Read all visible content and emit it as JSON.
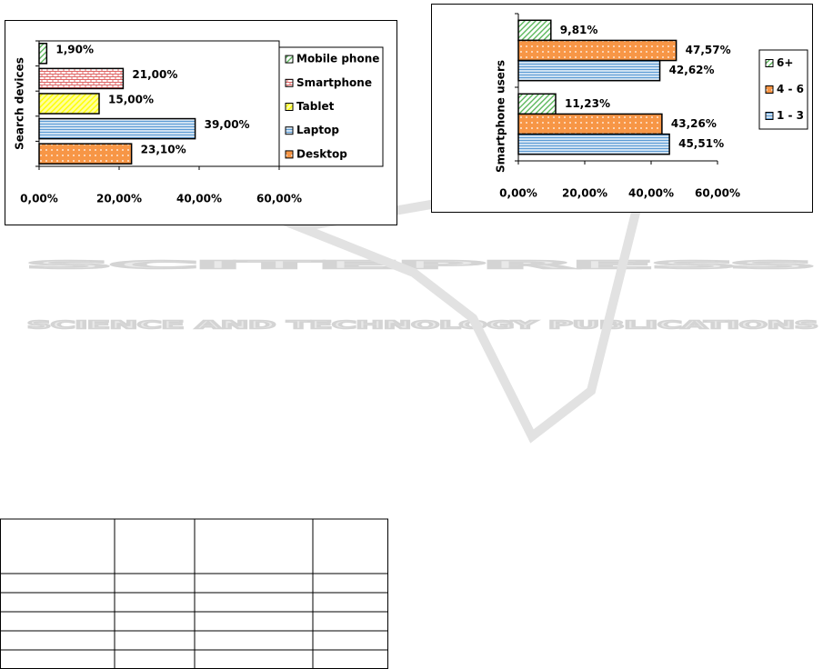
{
  "chart_data": [
    {
      "type": "bar",
      "orientation": "horizontal",
      "y_label": "Search devices",
      "categories": [
        "Desktop",
        "Laptop",
        "Tablet",
        "Smartphone",
        "Mobile phone"
      ],
      "values": [
        23.1,
        39,
        15,
        21,
        1.9
      ],
      "value_labels": [
        "23,10%",
        "39,00%",
        "15,00%",
        "21,00%",
        "1,90%"
      ],
      "colors": [
        "#f79646",
        "#5b9bd5",
        "#ffff00",
        "#e06666",
        "#5cb85c"
      ],
      "xlim": [
        0,
        60
      ],
      "xticks": [
        {
          "value": 0,
          "label": "0,00%"
        },
        {
          "value": 20,
          "label": "20,00%"
        },
        {
          "value": 40,
          "label": "40,00%"
        },
        {
          "value": 60,
          "label": "60,00%"
        }
      ],
      "legend": "right"
    },
    {
      "type": "bar",
      "orientation": "horizontal",
      "y_label": "Smartphone users",
      "categories": [
        null,
        null
      ],
      "series": [
        {
          "name": "6+",
          "color": "#5cb85c",
          "values": [
            11.23,
            9.81
          ],
          "value_labels": [
            "11,23%",
            "9,81%"
          ]
        },
        {
          "name": "4 - 6",
          "color": "#f79646",
          "values": [
            43.26,
            47.57
          ],
          "value_labels": [
            "43,26%",
            "47,57%"
          ]
        },
        {
          "name": "1 - 3",
          "color": "#5b9bd5",
          "values": [
            45.51,
            42.62
          ],
          "value_labels": [
            "45,51%",
            "42,62%"
          ]
        }
      ],
      "xlim": [
        0,
        60
      ],
      "xticks": [
        {
          "value": 0,
          "label": "0,00%"
        },
        {
          "value": 20,
          "label": "20,00%"
        },
        {
          "value": 40,
          "label": "40,00%"
        },
        {
          "value": 60,
          "label": "60,00%"
        }
      ],
      "legend": "right"
    }
  ],
  "watermark": {
    "title": "SCITEPRESS",
    "subtitle": "SCIENCE AND TECHNOLOGY PUBLICATIONS"
  }
}
